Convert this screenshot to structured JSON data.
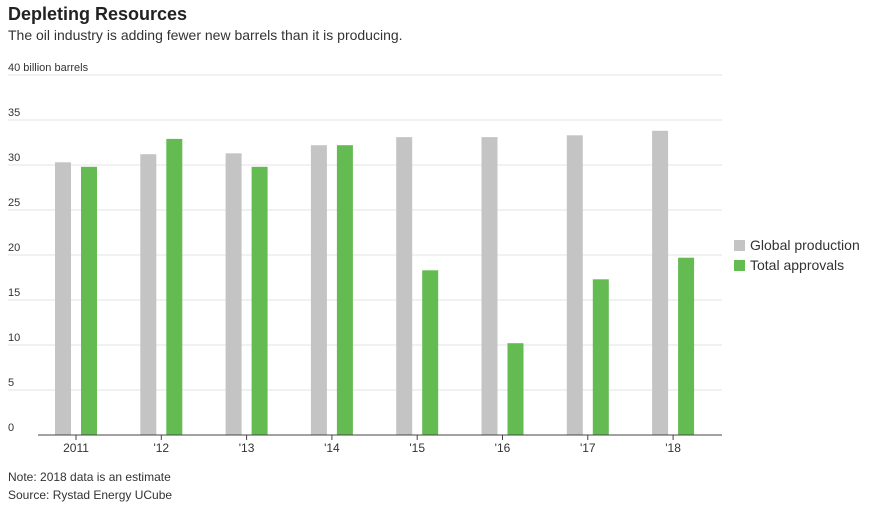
{
  "chart_data": {
    "type": "bar",
    "title": "Depleting Resources",
    "subtitle": "The oil industry is adding fewer new barrels than it is producing.",
    "y_unit_label": "40 billion barrels",
    "categories": [
      "2011",
      "'12",
      "'13",
      "'14",
      "'15",
      "'16",
      "'17",
      "'18"
    ],
    "series": [
      {
        "name": "Global production",
        "color": "#c4c4c4",
        "values": [
          30.3,
          31.2,
          31.3,
          32.2,
          33.1,
          33.1,
          33.3,
          33.8
        ]
      },
      {
        "name": "Total approvals",
        "color": "#63bb51",
        "values": [
          29.8,
          32.9,
          29.8,
          32.2,
          18.3,
          10.2,
          17.3,
          19.7
        ]
      }
    ],
    "ylim": [
      0,
      40
    ],
    "yticks": [
      "0",
      "5",
      "10",
      "15",
      "20",
      "25",
      "30",
      "35"
    ],
    "grid": true,
    "legend_position": "right",
    "note": "Note: 2018 data is an estimate",
    "source": "Source: Rystad Energy UCube"
  }
}
